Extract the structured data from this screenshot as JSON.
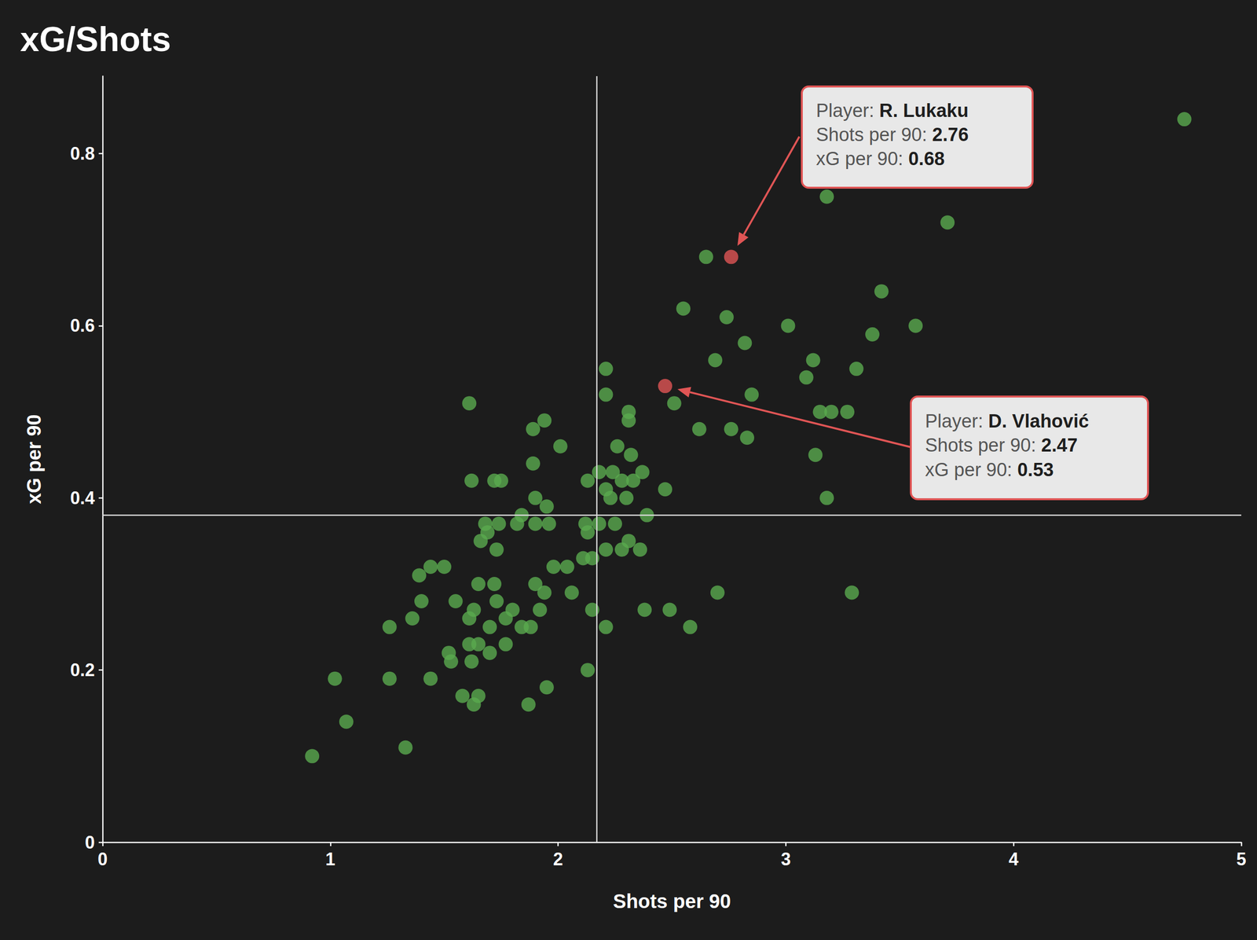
{
  "chart_data": {
    "type": "scatter",
    "title": "xG/Shots",
    "x_label": "Shots per 90",
    "y_label": "xG per 90",
    "xlim": [
      0,
      5
    ],
    "xticks": [
      0,
      1,
      2,
      3,
      4,
      5
    ],
    "ylim": [
      0,
      0.89
    ],
    "yticks": [
      0,
      0.2,
      0.4,
      0.6,
      0.8
    ],
    "grid": false,
    "marker": "circle",
    "color": "#5aaa4f",
    "x_reference": 2.17,
    "y_reference": 0.378,
    "x": [
      4.75,
      3.18,
      3.71,
      2.65,
      3.42,
      2.55,
      2.74,
      3.01,
      3.57,
      3.38,
      2.82,
      2.69,
      3.12,
      3.31,
      2.21,
      3.09,
      2.21,
      2.85,
      2.51,
      1.61,
      2.31,
      3.15,
      3.2,
      3.27,
      2.31,
      1.94,
      1.89,
      2.62,
      2.76,
      2.83,
      2.01,
      2.26,
      2.32,
      3.13,
      1.89,
      2.18,
      2.24,
      2.37,
      2.13,
      1.62,
      1.72,
      1.75,
      2.28,
      2.33,
      2.47,
      2.21,
      2.23,
      2.3,
      1.9,
      3.18,
      1.95,
      1.84,
      2.39,
      1.82,
      1.9,
      1.96,
      1.68,
      1.74,
      2.12,
      2.18,
      2.25,
      1.69,
      2.13,
      1.66,
      2.31,
      1.73,
      2.21,
      2.28,
      2.36,
      2.11,
      2.15,
      1.98,
      2.04,
      1.39,
      1.44,
      1.5,
      1.9,
      1.65,
      1.72,
      1.94,
      2.06,
      2.7,
      3.29,
      1.4,
      1.55,
      1.73,
      1.8,
      1.63,
      1.92,
      2.15,
      2.38,
      2.49,
      1.36,
      1.61,
      1.77,
      1.26,
      1.7,
      1.84,
      1.88,
      2.21,
      2.58,
      1.65,
      1.77,
      1.61,
      1.52,
      1.7,
      1.53,
      1.62,
      2.13,
      1.02,
      1.26,
      1.44,
      1.95,
      1.58,
      1.65,
      1.63,
      1.87,
      1.07,
      1.33,
      0.92
    ],
    "values": [
      0.84,
      0.75,
      0.72,
      0.68,
      0.64,
      0.62,
      0.61,
      0.6,
      0.6,
      0.59,
      0.58,
      0.56,
      0.56,
      0.55,
      0.55,
      0.54,
      0.52,
      0.52,
      0.51,
      0.51,
      0.5,
      0.5,
      0.5,
      0.5,
      0.49,
      0.49,
      0.48,
      0.48,
      0.48,
      0.47,
      0.46,
      0.46,
      0.45,
      0.45,
      0.44,
      0.43,
      0.43,
      0.43,
      0.42,
      0.42,
      0.42,
      0.42,
      0.42,
      0.42,
      0.41,
      0.41,
      0.4,
      0.4,
      0.4,
      0.4,
      0.39,
      0.38,
      0.38,
      0.37,
      0.37,
      0.37,
      0.37,
      0.37,
      0.37,
      0.37,
      0.37,
      0.36,
      0.36,
      0.35,
      0.35,
      0.34,
      0.34,
      0.34,
      0.34,
      0.33,
      0.33,
      0.32,
      0.32,
      0.31,
      0.32,
      0.32,
      0.3,
      0.3,
      0.3,
      0.29,
      0.29,
      0.29,
      0.29,
      0.28,
      0.28,
      0.28,
      0.27,
      0.27,
      0.27,
      0.27,
      0.27,
      0.27,
      0.26,
      0.26,
      0.26,
      0.25,
      0.25,
      0.25,
      0.25,
      0.25,
      0.25,
      0.23,
      0.23,
      0.23,
      0.22,
      0.22,
      0.21,
      0.21,
      0.2,
      0.19,
      0.19,
      0.19,
      0.18,
      0.17,
      0.17,
      0.16,
      0.16,
      0.14,
      0.11,
      0.1
    ],
    "annotations": [
      {
        "x": 2.76,
        "y": 0.68,
        "color": "#e05555",
        "fields": [
          {
            "label": "Player:",
            "value": "R. Lukaku"
          },
          {
            "label": "Shots per 90:",
            "value": 2.76
          },
          {
            "label": "xG per 90:",
            "value": 0.68
          }
        ]
      },
      {
        "x": 2.47,
        "y": 0.53,
        "color": "#e05555",
        "fields": [
          {
            "label": "Player:",
            "value": "D. Vlahović"
          },
          {
            "label": "Shots per 90:",
            "value": 2.47
          },
          {
            "label": "xG per 90:",
            "value": 0.53
          }
        ]
      }
    ]
  }
}
